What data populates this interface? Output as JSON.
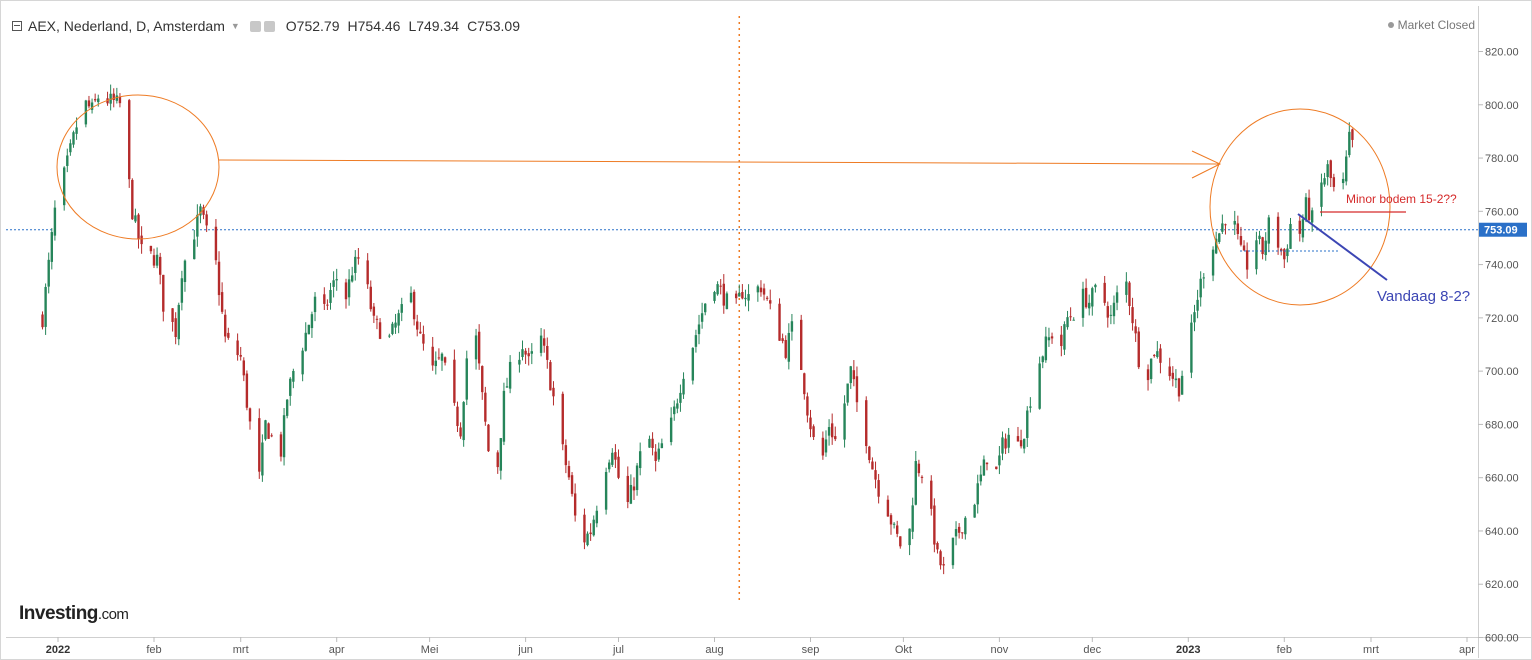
{
  "header": {
    "title": "AEX, Nederland, D, Amsterdam",
    "ohlc": {
      "open": "O752.79",
      "high": "H754.46",
      "low": "L749.34",
      "close": "C753.09"
    }
  },
  "status": {
    "label": "Market Closed"
  },
  "brand": {
    "name": "Investing",
    "suffix": ".com"
  },
  "chart_data": {
    "type": "candlestick",
    "ylim": [
      600,
      830
    ],
    "y_ticks": [
      "600.00",
      "620.00",
      "640.00",
      "660.00",
      "680.00",
      "700.00",
      "720.00",
      "740.00",
      "760.00",
      "780.00",
      "800.00",
      "820.00"
    ],
    "x_labels": [
      {
        "label": "2022",
        "date": "2022-01-01",
        "bold": true
      },
      {
        "label": "feb",
        "date": "2022-02-01"
      },
      {
        "label": "mrt",
        "date": "2022-03-01"
      },
      {
        "label": "apr",
        "date": "2022-04-01"
      },
      {
        "label": "Mei",
        "date": "2022-05-01"
      },
      {
        "label": "jun",
        "date": "2022-06-01"
      },
      {
        "label": "jul",
        "date": "2022-07-01"
      },
      {
        "label": "aug",
        "date": "2022-08-01"
      },
      {
        "label": "sep",
        "date": "2022-09-01"
      },
      {
        "label": "Okt",
        "date": "2022-10-01"
      },
      {
        "label": "nov",
        "date": "2022-11-01"
      },
      {
        "label": "dec",
        "date": "2022-12-01"
      },
      {
        "label": "2023",
        "date": "2023-01-01",
        "bold": true
      },
      {
        "label": "feb",
        "date": "2023-02-01"
      },
      {
        "label": "mrt",
        "date": "2023-03-01"
      },
      {
        "label": "apr",
        "date": "2023-04-01"
      }
    ],
    "last_price": {
      "value": 753.09,
      "label": "753.09"
    },
    "colors": {
      "up": "#26855a",
      "down": "#b52b2b",
      "annotation_orange": "#ee7b24",
      "annotation_blue": "#3c46b4",
      "annotation_red": "#d52a2a",
      "price_tag": "#2a70c8"
    },
    "annotations": [
      {
        "type": "text",
        "text": "Minor bodem  15-2??",
        "color": "#d52a2a"
      },
      {
        "type": "text",
        "text": "Vandaag 8-2?",
        "color": "#3c46b4"
      }
    ],
    "path": [
      [
        "2021-12-27",
        720
      ],
      [
        "2021-12-31",
        760
      ],
      [
        "2022-01-04",
        778
      ],
      [
        "2022-01-07",
        792
      ],
      [
        "2022-01-10",
        800
      ],
      [
        "2022-01-12",
        798
      ],
      [
        "2022-01-14",
        803
      ],
      [
        "2022-01-21",
        800
      ],
      [
        "2022-01-25",
        760
      ],
      [
        "2022-01-28",
        745
      ],
      [
        "2022-02-02",
        742
      ],
      [
        "2022-02-04",
        725
      ],
      [
        "2022-02-08",
        715
      ],
      [
        "2022-02-10",
        738
      ],
      [
        "2022-02-14",
        752
      ],
      [
        "2022-02-16",
        760
      ],
      [
        "2022-02-18",
        752
      ],
      [
        "2022-02-21",
        740
      ],
      [
        "2022-02-24",
        712
      ],
      [
        "2022-03-01",
        705
      ],
      [
        "2022-03-04",
        680
      ],
      [
        "2022-03-07",
        660
      ],
      [
        "2022-03-09",
        680
      ],
      [
        "2022-03-11",
        675
      ],
      [
        "2022-03-14",
        670
      ],
      [
        "2022-03-16",
        690
      ],
      [
        "2022-03-18",
        700
      ],
      [
        "2022-03-21",
        710
      ],
      [
        "2022-03-23",
        718
      ],
      [
        "2022-03-25",
        726
      ],
      [
        "2022-03-28",
        722
      ],
      [
        "2022-03-30",
        730
      ],
      [
        "2022-04-01",
        735
      ],
      [
        "2022-04-04",
        728
      ],
      [
        "2022-04-06",
        738
      ],
      [
        "2022-04-08",
        742
      ],
      [
        "2022-04-11",
        730
      ],
      [
        "2022-04-13",
        718
      ],
      [
        "2022-04-18",
        712
      ],
      [
        "2022-04-21",
        720
      ],
      [
        "2022-04-25",
        728
      ],
      [
        "2022-04-28",
        712
      ],
      [
        "2022-05-02",
        700
      ],
      [
        "2022-05-05",
        705
      ],
      [
        "2022-05-09",
        685
      ],
      [
        "2022-05-11",
        678
      ],
      [
        "2022-05-13",
        705
      ],
      [
        "2022-05-16",
        712
      ],
      [
        "2022-05-18",
        690
      ],
      [
        "2022-05-20",
        670
      ],
      [
        "2022-05-23",
        665
      ],
      [
        "2022-05-25",
        690
      ],
      [
        "2022-05-27",
        700
      ],
      [
        "2022-05-31",
        710
      ],
      [
        "2022-06-02",
        703
      ],
      [
        "2022-06-06",
        712
      ],
      [
        "2022-06-08",
        702
      ],
      [
        "2022-06-10",
        690
      ],
      [
        "2022-06-13",
        670
      ],
      [
        "2022-06-15",
        660
      ],
      [
        "2022-06-17",
        645
      ],
      [
        "2022-06-20",
        637
      ],
      [
        "2022-06-22",
        640
      ],
      [
        "2022-06-24",
        650
      ],
      [
        "2022-06-27",
        665
      ],
      [
        "2022-06-29",
        672
      ],
      [
        "2022-07-01",
        660
      ],
      [
        "2022-07-04",
        650
      ],
      [
        "2022-07-06",
        658
      ],
      [
        "2022-07-08",
        668
      ],
      [
        "2022-07-11",
        674
      ],
      [
        "2022-07-13",
        665
      ],
      [
        "2022-07-15",
        672
      ],
      [
        "2022-07-18",
        680
      ],
      [
        "2022-07-20",
        690
      ],
      [
        "2022-07-22",
        700
      ],
      [
        "2022-07-25",
        710
      ],
      [
        "2022-07-27",
        718
      ],
      [
        "2022-07-29",
        726
      ],
      [
        "2022-08-01",
        733
      ],
      [
        "2022-08-03",
        730
      ],
      [
        "2022-08-05",
        726
      ],
      [
        "2022-08-08",
        724
      ],
      [
        "2022-08-10",
        730
      ],
      [
        "2022-08-12",
        728
      ],
      [
        "2022-08-16",
        732
      ],
      [
        "2022-08-18",
        726
      ],
      [
        "2022-08-22",
        714
      ],
      [
        "2022-08-24",
        708
      ],
      [
        "2022-08-26",
        716
      ],
      [
        "2022-08-29",
        702
      ],
      [
        "2022-08-31",
        686
      ],
      [
        "2022-09-02",
        674
      ],
      [
        "2022-09-05",
        668
      ],
      [
        "2022-09-07",
        680
      ],
      [
        "2022-09-09",
        674
      ],
      [
        "2022-09-12",
        688
      ],
      [
        "2022-09-14",
        700
      ],
      [
        "2022-09-16",
        688
      ],
      [
        "2022-09-19",
        675
      ],
      [
        "2022-09-21",
        664
      ],
      [
        "2022-09-23",
        656
      ],
      [
        "2022-09-26",
        648
      ],
      [
        "2022-09-28",
        640
      ],
      [
        "2022-09-30",
        635
      ],
      [
        "2022-10-03",
        640
      ],
      [
        "2022-10-05",
        665
      ],
      [
        "2022-10-07",
        662
      ],
      [
        "2022-10-10",
        645
      ],
      [
        "2022-10-12",
        630
      ],
      [
        "2022-10-14",
        625
      ],
      [
        "2022-10-17",
        635
      ],
      [
        "2022-10-19",
        640
      ],
      [
        "2022-10-21",
        645
      ],
      [
        "2022-10-24",
        652
      ],
      [
        "2022-10-26",
        660
      ],
      [
        "2022-10-28",
        668
      ],
      [
        "2022-10-31",
        662
      ],
      [
        "2022-11-02",
        672
      ],
      [
        "2022-11-04",
        676
      ],
      [
        "2022-11-07",
        672
      ],
      [
        "2022-11-09",
        678
      ],
      [
        "2022-11-11",
        690
      ],
      [
        "2022-11-14",
        704
      ],
      [
        "2022-11-16",
        710
      ],
      [
        "2022-11-18",
        714
      ],
      [
        "2022-11-21",
        710
      ],
      [
        "2022-11-23",
        720
      ],
      [
        "2022-11-25",
        722
      ],
      [
        "2022-11-28",
        728
      ],
      [
        "2022-11-30",
        726
      ],
      [
        "2022-12-02",
        730
      ],
      [
        "2022-12-05",
        726
      ],
      [
        "2022-12-07",
        720
      ],
      [
        "2022-12-09",
        728
      ],
      [
        "2022-12-12",
        733
      ],
      [
        "2022-12-14",
        720
      ],
      [
        "2022-12-16",
        705
      ],
      [
        "2022-12-19",
        700
      ],
      [
        "2022-12-21",
        708
      ],
      [
        "2022-12-23",
        705
      ],
      [
        "2022-12-27",
        698
      ],
      [
        "2022-12-29",
        694
      ],
      [
        "2023-01-02",
        715
      ],
      [
        "2023-01-04",
        728
      ],
      [
        "2023-01-06",
        738
      ],
      [
        "2023-01-09",
        748
      ],
      [
        "2023-01-11",
        752
      ],
      [
        "2023-01-13",
        758
      ],
      [
        "2023-01-16",
        754
      ],
      [
        "2023-01-18",
        744
      ],
      [
        "2023-01-20",
        740
      ],
      [
        "2023-01-23",
        750
      ],
      [
        "2023-01-25",
        745
      ],
      [
        "2023-01-27",
        755
      ],
      [
        "2023-01-30",
        748
      ],
      [
        "2023-02-01",
        742
      ],
      [
        "2023-02-03",
        755
      ],
      [
        "2023-02-06",
        752
      ],
      [
        "2023-02-08",
        762
      ],
      [
        "2023-02-10",
        757
      ],
      [
        "2023-02-13",
        770
      ],
      [
        "2023-02-15",
        776
      ],
      [
        "2023-02-17",
        768
      ],
      [
        "2023-02-20",
        770
      ],
      [
        "2023-02-22",
        787
      ],
      [
        "2023-02-23",
        785
      ]
    ]
  }
}
